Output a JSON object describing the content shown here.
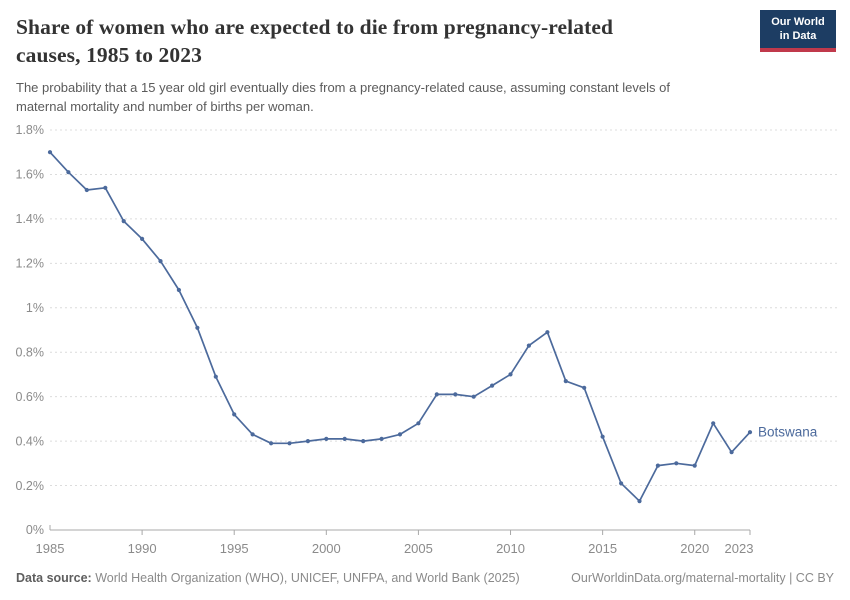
{
  "logo": {
    "line1": "Our World",
    "line2": "in Data",
    "bg_color": "#1d3d63",
    "strip_color": "#c0394b"
  },
  "footer": {
    "data_source_label": "Data source:",
    "data_source": "World Health Organization (WHO), UNICEF, UNFPA, and World Bank (2025)",
    "credit": "OurWorldinData.org/maternal-mortality | CC BY"
  },
  "chart_data": {
    "type": "line",
    "title": "Share of women who are expected to die from pregnancy-related causes, 1985 to 2023",
    "title_lines": [
      "Share of women who are expected to die from pregnancy-related",
      "causes, 1985 to 2023"
    ],
    "subtitle_lines": [
      "The probability that a 15 year old girl eventually dies from a pregnancy-related cause, assuming constant levels of",
      "maternal mortality and number of births per woman."
    ],
    "unit": "%",
    "xlabel": "",
    "ylabel": "",
    "ylim": [
      0,
      1.8
    ],
    "xlim": [
      1985,
      2023
    ],
    "grid": true,
    "legend_position": "end-of-line",
    "x": [
      1985,
      1986,
      1987,
      1988,
      1989,
      1990,
      1991,
      1992,
      1993,
      1994,
      1995,
      1996,
      1997,
      1998,
      1999,
      2000,
      2001,
      2002,
      2003,
      2004,
      2005,
      2006,
      2007,
      2008,
      2009,
      2010,
      2011,
      2012,
      2013,
      2014,
      2015,
      2016,
      2017,
      2018,
      2019,
      2020,
      2021,
      2022,
      2023
    ],
    "series": [
      {
        "name": "Botswana",
        "color": "#4c6a9c",
        "values": [
          1.7,
          1.61,
          1.53,
          1.54,
          1.39,
          1.31,
          1.21,
          1.08,
          0.91,
          0.69,
          0.52,
          0.43,
          0.39,
          0.39,
          0.4,
          0.41,
          0.41,
          0.4,
          0.41,
          0.43,
          0.48,
          0.61,
          0.61,
          0.6,
          0.65,
          0.7,
          0.83,
          0.89,
          0.67,
          0.64,
          0.42,
          0.21,
          0.13,
          0.29,
          0.3,
          0.29,
          0.48,
          0.35,
          0.44
        ]
      }
    ],
    "x_ticks": [
      1985,
      1990,
      1995,
      2000,
      2005,
      2010,
      2015,
      2020,
      2023
    ],
    "y_ticks": [
      {
        "v": 0,
        "label": "0%"
      },
      {
        "v": 0.2,
        "label": "0.2%"
      },
      {
        "v": 0.4,
        "label": "0.4%"
      },
      {
        "v": 0.6,
        "label": "0.6%"
      },
      {
        "v": 0.8,
        "label": "0.8%"
      },
      {
        "v": 1,
        "label": "1%"
      },
      {
        "v": 1.2,
        "label": "1.2%"
      },
      {
        "v": 1.4,
        "label": "1.4%"
      },
      {
        "v": 1.6,
        "label": "1.6%"
      },
      {
        "v": 1.8,
        "label": "1.8%"
      }
    ],
    "end_label": "Botswana",
    "axis_color": "#a8a8a8",
    "grid_color": "#dcdcdc",
    "tick_text_color": "#8b8b8b"
  }
}
